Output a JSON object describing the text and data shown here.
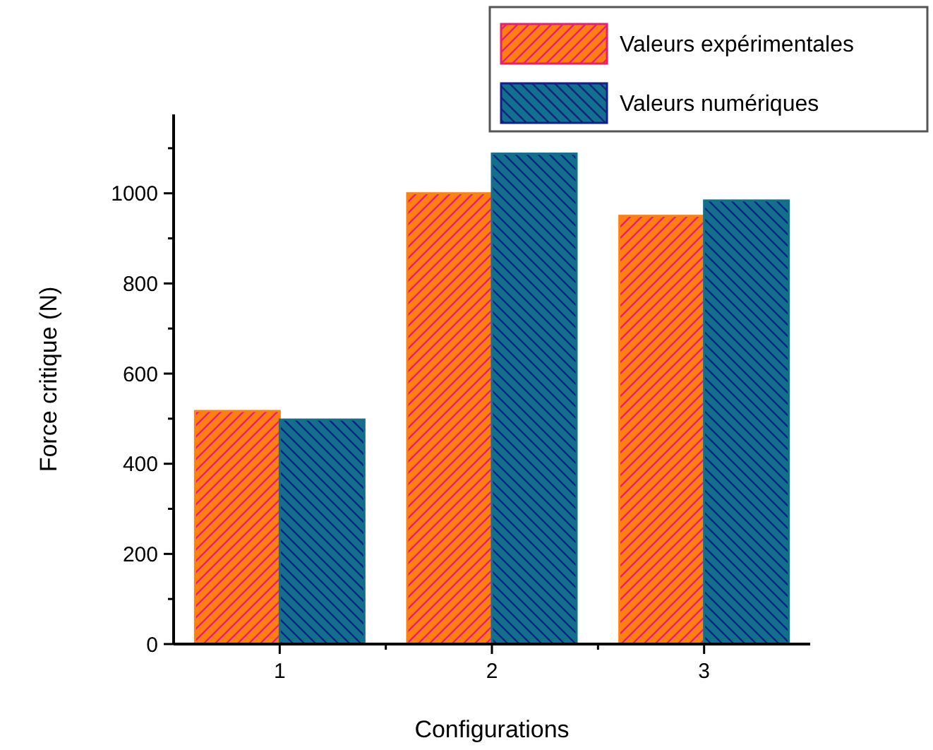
{
  "chart_data": {
    "type": "bar",
    "xlabel": "Configurations",
    "ylabel": "Force critique (N)",
    "categories": [
      "1",
      "2",
      "3"
    ],
    "series": [
      {
        "name": "Valeurs expérimentales",
        "color": "#ff7f10",
        "values": [
          517,
          1000,
          950
        ]
      },
      {
        "name": "Valeurs numériques",
        "color": "#12708c",
        "values": [
          498,
          1088,
          984
        ]
      }
    ],
    "ylim": [
      0,
      1175
    ],
    "yticks": [
      0,
      {
        "value": 100,
        "label": null
      },
      200,
      {
        "value": 300,
        "label": null
      },
      400,
      {
        "value": 500,
        "label": null
      },
      600,
      {
        "value": 700,
        "label": null
      },
      800,
      {
        "value": 900,
        "label": null
      },
      1000,
      {
        "value": 1100,
        "label": null
      }
    ],
    "grid": false,
    "legend": "top right"
  }
}
